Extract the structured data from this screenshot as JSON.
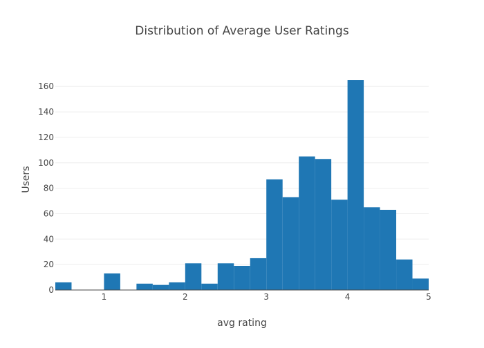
{
  "chart_data": {
    "type": "bar",
    "title": "Distribution of Average User Ratings",
    "xlabel": "avg rating",
    "ylabel": "Users",
    "bar_color": "#1f77b4",
    "background": "#ffffff",
    "grid": true,
    "bin_width": 0.2,
    "bins": [
      {
        "start": 0.4,
        "end": 0.6,
        "value": 6
      },
      {
        "start": 0.6,
        "end": 0.8,
        "value": 0
      },
      {
        "start": 0.8,
        "end": 1.0,
        "value": 0
      },
      {
        "start": 1.0,
        "end": 1.2,
        "value": 13
      },
      {
        "start": 1.2,
        "end": 1.4,
        "value": 0
      },
      {
        "start": 1.4,
        "end": 1.6,
        "value": 5
      },
      {
        "start": 1.6,
        "end": 1.8,
        "value": 4
      },
      {
        "start": 1.8,
        "end": 2.0,
        "value": 6
      },
      {
        "start": 2.0,
        "end": 2.2,
        "value": 21
      },
      {
        "start": 2.2,
        "end": 2.4,
        "value": 5
      },
      {
        "start": 2.4,
        "end": 2.6,
        "value": 21
      },
      {
        "start": 2.6,
        "end": 2.8,
        "value": 19
      },
      {
        "start": 2.8,
        "end": 3.0,
        "value": 25
      },
      {
        "start": 3.0,
        "end": 3.2,
        "value": 87
      },
      {
        "start": 3.2,
        "end": 3.4,
        "value": 73
      },
      {
        "start": 3.4,
        "end": 3.6,
        "value": 105
      },
      {
        "start": 3.6,
        "end": 3.8,
        "value": 103
      },
      {
        "start": 3.8,
        "end": 4.0,
        "value": 71
      },
      {
        "start": 4.0,
        "end": 4.2,
        "value": 165
      },
      {
        "start": 4.2,
        "end": 4.4,
        "value": 65
      },
      {
        "start": 4.4,
        "end": 4.6,
        "value": 63
      },
      {
        "start": 4.6,
        "end": 4.8,
        "value": 24
      },
      {
        "start": 4.8,
        "end": 5.0,
        "value": 9
      }
    ],
    "xlim": [
      0.4,
      5.0
    ],
    "ylim": [
      0,
      173.7
    ],
    "xticks": [
      1,
      2,
      3,
      4,
      5
    ],
    "xtick_labels": [
      "1",
      "2",
      "3",
      "4",
      "5"
    ],
    "yticks": [
      0,
      20,
      40,
      60,
      80,
      100,
      120,
      140,
      160
    ],
    "ytick_labels": [
      "0",
      "20",
      "40",
      "60",
      "80",
      "100",
      "120",
      "140",
      "160"
    ]
  }
}
